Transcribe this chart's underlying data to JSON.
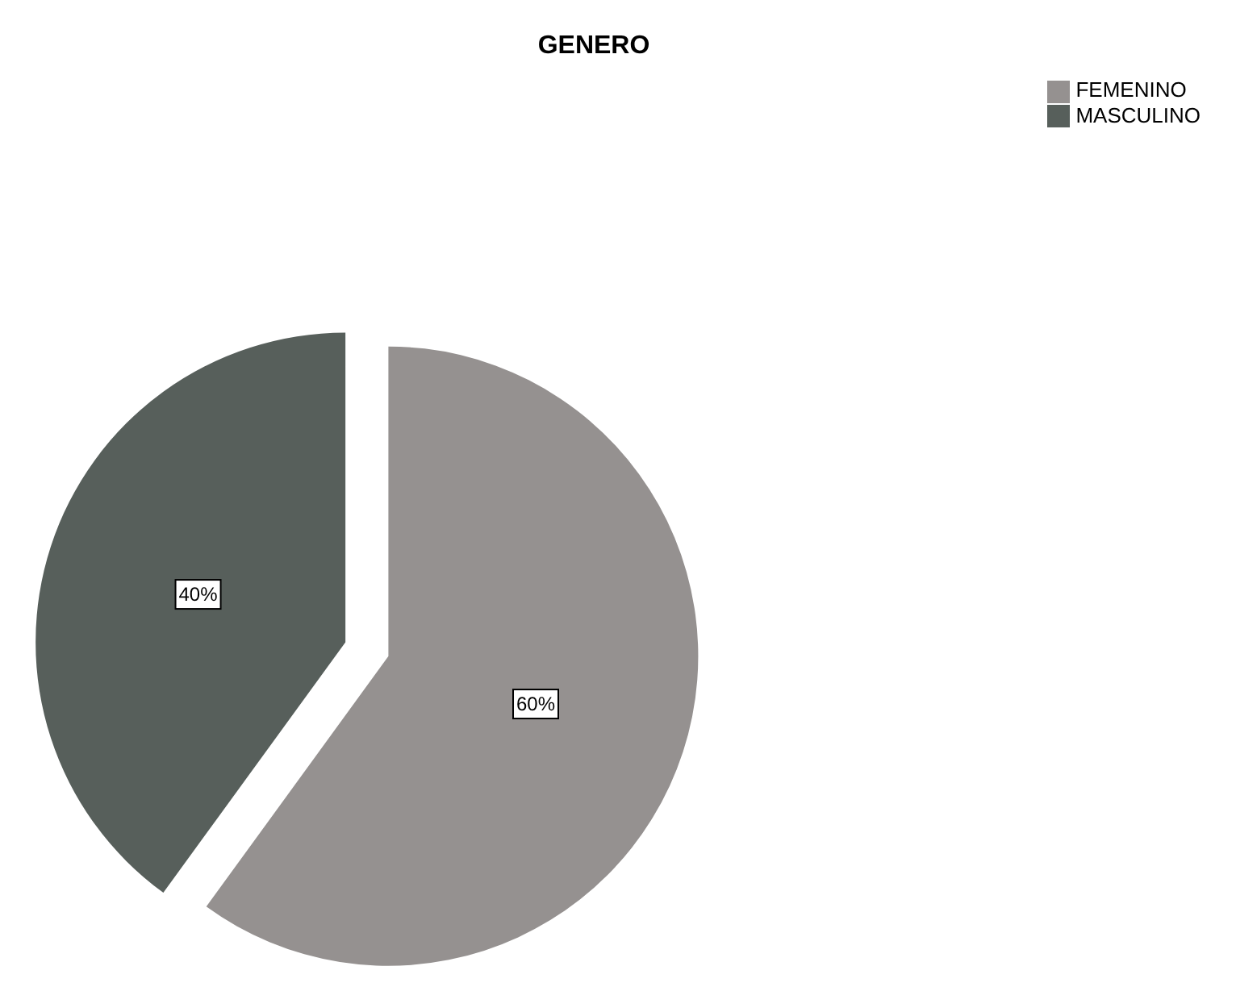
{
  "chart_data": {
    "type": "pie",
    "title": "GENERO",
    "categories": [
      "FEMENINO",
      "MASCULINO"
    ],
    "values": [
      60,
      40
    ],
    "colors": [
      "#959190",
      "#575f5b"
    ],
    "value_labels": [
      "60%",
      "40%"
    ],
    "legend": "top right"
  }
}
